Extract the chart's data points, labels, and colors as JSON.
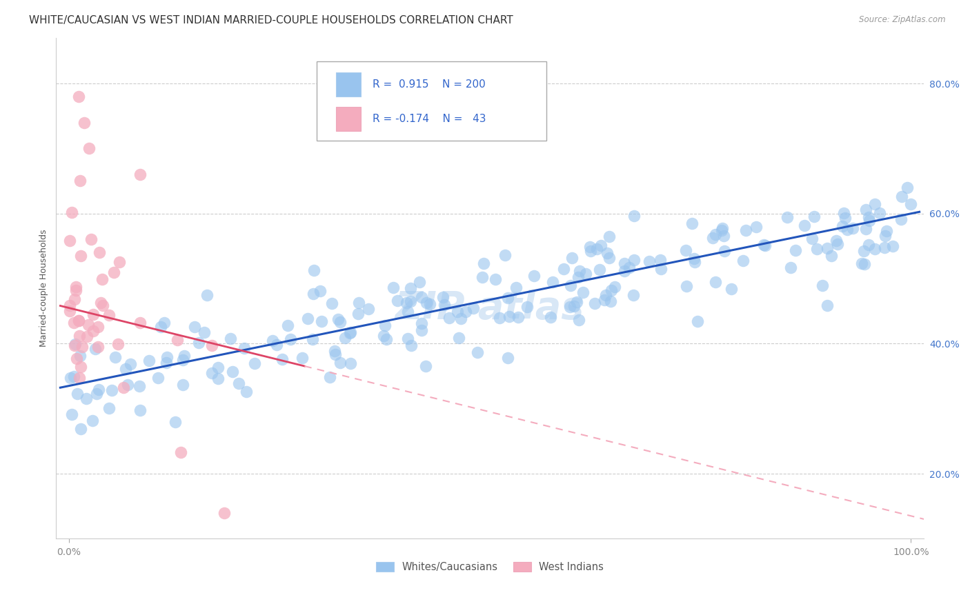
{
  "title": "WHITE/CAUCASIAN VS WEST INDIAN MARRIED-COUPLE HOUSEHOLDS CORRELATION CHART",
  "source": "Source: ZipAtlas.com",
  "ylabel": "Married-couple Households",
  "blue_R": 0.915,
  "blue_N": 200,
  "pink_R": -0.174,
  "pink_N": 43,
  "blue_color": "#99C4EE",
  "pink_color": "#F4ACBE",
  "blue_line_color": "#2255BB",
  "pink_line_color": "#DD4466",
  "pink_line_dash_color": "#F4ACBE",
  "legend_labels": [
    "Whites/Caucasians",
    "West Indians"
  ],
  "ytick_positions": [
    0.2,
    0.4,
    0.6,
    0.8
  ],
  "ytick_labels": [
    "20.0%",
    "40.0%",
    "60.0%",
    "80.0%"
  ],
  "tick_color": "#4477CC",
  "axis_tick_color": "#888888",
  "title_fontsize": 11,
  "axis_label_fontsize": 9,
  "tick_fontsize": 10,
  "figsize": [
    14.06,
    8.92
  ],
  "dpi": 100,
  "blue_intercept": 0.335,
  "blue_slope": 0.265,
  "blue_noise": 0.038,
  "pink_intercept": 0.455,
  "pink_slope": -0.32,
  "pink_noise": 0.075,
  "ylim_low": 0.1,
  "ylim_high": 0.87
}
